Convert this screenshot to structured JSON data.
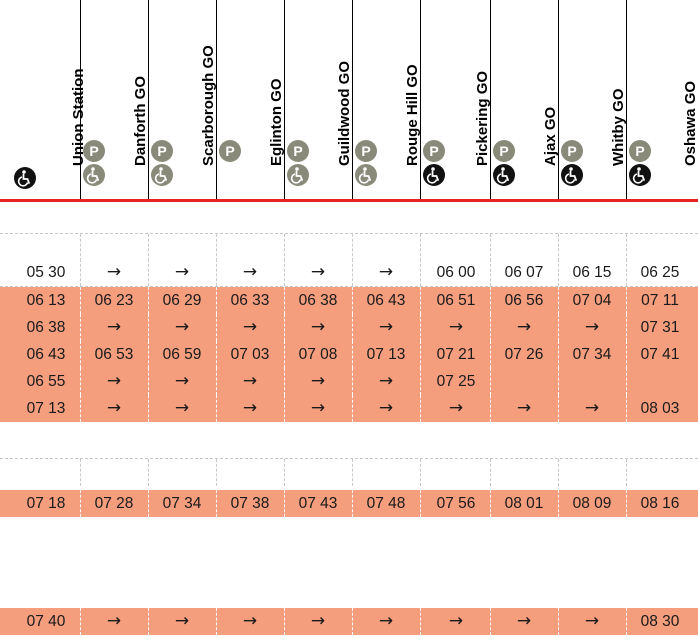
{
  "stations": [
    {
      "name": "Union Station",
      "parking": false,
      "accessible": true,
      "access_style": "dark"
    },
    {
      "name": "Danforth GO",
      "parking": true,
      "accessible": true,
      "access_style": "grey"
    },
    {
      "name": "Scarborough GO",
      "parking": true,
      "accessible": true,
      "access_style": "grey"
    },
    {
      "name": "Eglinton GO",
      "parking": true,
      "accessible": false,
      "access_style": "grey"
    },
    {
      "name": "Guildwood GO",
      "parking": true,
      "accessible": true,
      "access_style": "grey"
    },
    {
      "name": "Rouge Hill GO",
      "parking": true,
      "accessible": true,
      "access_style": "grey"
    },
    {
      "name": "Pickering GO",
      "parking": true,
      "accessible": true,
      "access_style": "dark"
    },
    {
      "name": "Ajax GO",
      "parking": true,
      "accessible": true,
      "access_style": "dark"
    },
    {
      "name": "Whitby GO",
      "parking": true,
      "accessible": true,
      "access_style": "dark"
    },
    {
      "name": "Oshawa GO",
      "parking": true,
      "accessible": true,
      "access_style": "dark"
    }
  ],
  "icons": {
    "parking": "P",
    "parking_icon": "parking-icon",
    "accessible_icon": "wheelchair-icon"
  },
  "colors": {
    "shaded": "#f59e7e",
    "red_rule": "#e52421",
    "icon_grey": "#8a8a7a",
    "icon_dark": "#111111"
  },
  "rows": [
    {
      "type": "blank",
      "cells": []
    },
    {
      "type": "plain",
      "cells": [
        "05 30",
        "→",
        "→",
        "→",
        "→",
        "→",
        "06 00",
        "06 07",
        "06 15",
        "06 25"
      ]
    },
    {
      "type": "shaded",
      "cells": [
        "06 13",
        "06 23",
        "06 29",
        "06 33",
        "06 38",
        "06 43",
        "06 51",
        "06 56",
        "07 04",
        "07 11"
      ]
    },
    {
      "type": "shaded",
      "cells": [
        "06 38",
        "→",
        "→",
        "→",
        "→",
        "→",
        "→",
        "→",
        "→",
        "07 31"
      ]
    },
    {
      "type": "shaded",
      "cells": [
        "06 43",
        "06 53",
        "06 59",
        "07 03",
        "07 08",
        "07 13",
        "07 21",
        "07 26",
        "07 34",
        "07 41"
      ]
    },
    {
      "type": "shaded",
      "cells": [
        "06 55",
        "→",
        "→",
        "→",
        "→",
        "→",
        "07 25",
        "",
        "",
        ""
      ]
    },
    {
      "type": "shaded",
      "cells": [
        "07 13",
        "→",
        "→",
        "→",
        "→",
        "→",
        "→",
        "→",
        "→",
        "08 03"
      ]
    },
    {
      "type": "blank",
      "cells": []
    },
    {
      "type": "shaded",
      "cells": [
        "07 18",
        "07 28",
        "07 34",
        "07 38",
        "07 43",
        "07 48",
        "07 56",
        "08 01",
        "08 09",
        "08 16"
      ]
    },
    {
      "type": "gap",
      "cells": []
    },
    {
      "type": "shaded",
      "cells": [
        "07 40",
        "→",
        "→",
        "→",
        "→",
        "→",
        "→",
        "→",
        "→",
        "08 30"
      ]
    }
  ]
}
